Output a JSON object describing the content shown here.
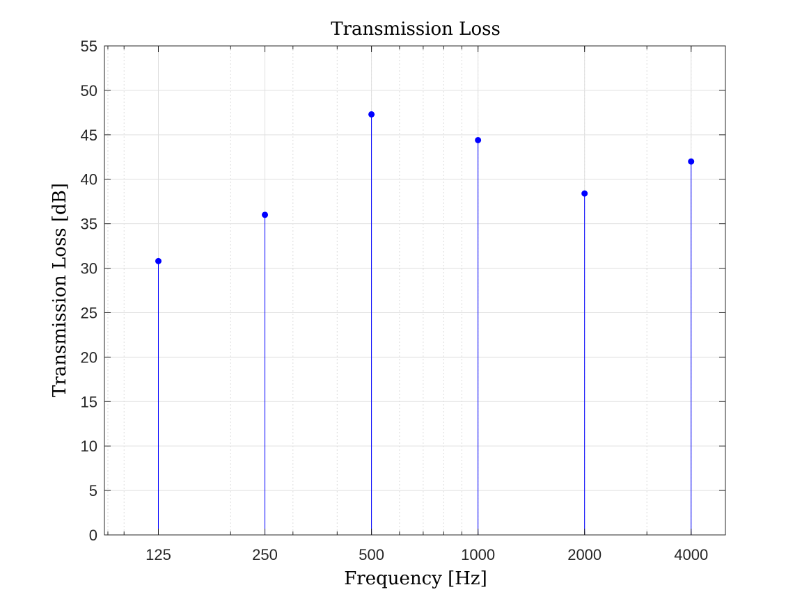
{
  "chart_data": {
    "type": "stem",
    "title": "Transmission Loss",
    "xlabel": "Frequency [Hz]",
    "ylabel": "Transmission Loss [dB]",
    "x_scale": "log",
    "xlim": [
      88,
      5000
    ],
    "ylim": [
      0,
      55
    ],
    "x_ticks": [
      125,
      250,
      500,
      1000,
      2000,
      4000
    ],
    "x_tick_labels": [
      "125",
      "250",
      "500",
      "1000",
      "2000",
      "4000"
    ],
    "y_ticks": [
      0,
      5,
      10,
      15,
      20,
      25,
      30,
      35,
      40,
      45,
      50,
      55
    ],
    "y_tick_labels": [
      "0",
      "5",
      "10",
      "15",
      "20",
      "25",
      "30",
      "35",
      "40",
      "45",
      "50",
      "55"
    ],
    "grid": true,
    "minor_grid_x": true,
    "series": [
      {
        "x": [
          125,
          250,
          500,
          1000,
          2000,
          4000
        ],
        "values": [
          30.8,
          36.0,
          47.3,
          44.4,
          38.4,
          42.0
        ],
        "color": "#0000ff"
      }
    ]
  }
}
